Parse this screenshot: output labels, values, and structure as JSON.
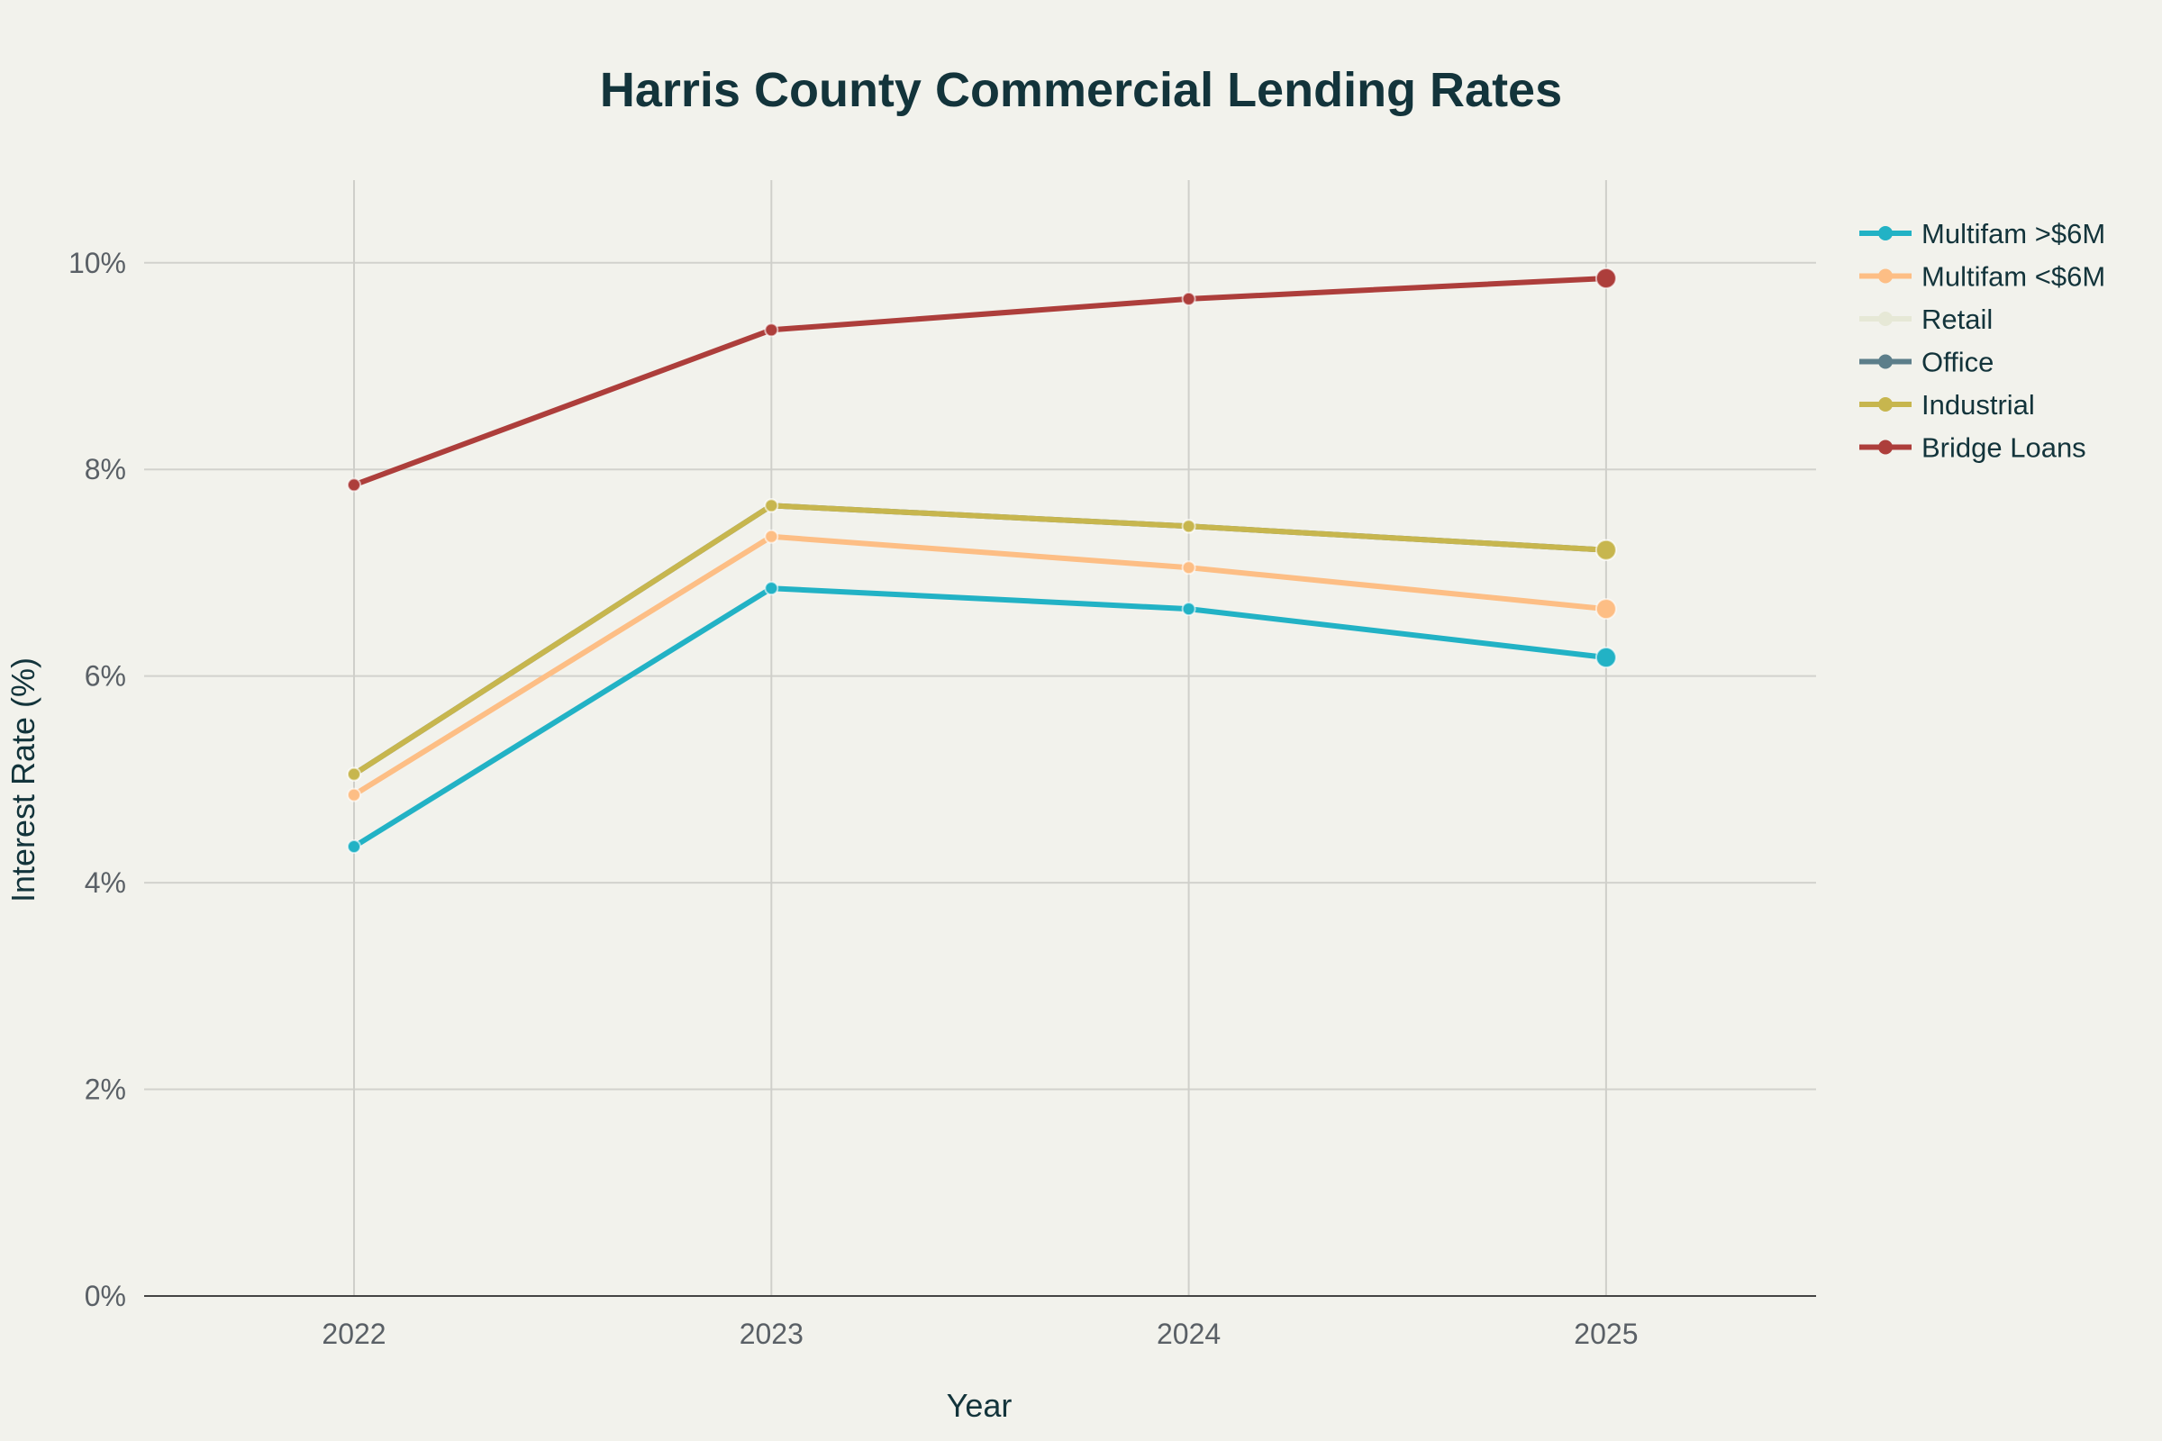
{
  "chart_data": {
    "type": "line",
    "title": "Harris County Commercial Lending Rates",
    "xlabel": "Year",
    "ylabel": "Interest Rate (%)",
    "x": [
      "2022",
      "2023",
      "2024",
      "2025"
    ],
    "ylim": [
      0,
      10.8
    ],
    "y_ticks": [
      0,
      2,
      4,
      6,
      8,
      10
    ],
    "y_tick_labels": [
      "0%",
      "2%",
      "4%",
      "6%",
      "8%",
      "10%"
    ],
    "grid": true,
    "legend_position": "top-right",
    "series": [
      {
        "name": "Multifam >$6M",
        "color": "#22b2c5",
        "values": [
          4.35,
          6.85,
          6.65,
          6.18
        ]
      },
      {
        "name": "Multifam <$6M",
        "color": "#fdbe85",
        "values": [
          4.85,
          7.35,
          7.05,
          6.65
        ]
      },
      {
        "name": "Retail",
        "color": "#e6e8d6",
        "values": [
          5.05,
          7.65,
          7.45,
          7.22
        ]
      },
      {
        "name": "Office",
        "color": "#5c7e8a",
        "values": [
          5.05,
          7.65,
          7.45,
          7.22
        ]
      },
      {
        "name": "Industrial",
        "color": "#c7b64e",
        "values": [
          5.05,
          7.65,
          7.45,
          7.22
        ]
      },
      {
        "name": "Bridge Loans",
        "color": "#ad3e3b",
        "values": [
          7.85,
          9.35,
          9.65,
          9.85
        ]
      }
    ]
  }
}
